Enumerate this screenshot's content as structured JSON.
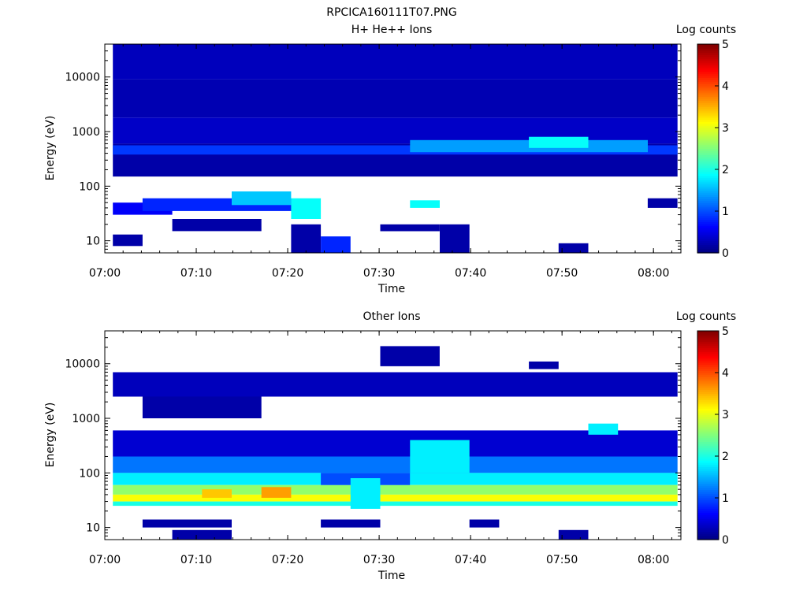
{
  "figure_title": "RPCICA160111T07.PNG",
  "colors": {
    "colormap": [
      "#00007f",
      "#0000ff",
      "#007fff",
      "#00ffff",
      "#7fff7f",
      "#ffff00",
      "#ff7f00",
      "#ff0000",
      "#7f0000"
    ]
  },
  "chart_data": [
    {
      "type": "heatmap",
      "title": "H+ He++ Ions",
      "xlabel": "Time",
      "ylabel": "Energy (eV)",
      "colorbar_label": "Log counts",
      "colorbar_ticks": [
        "0",
        "1",
        "2",
        "3",
        "4",
        "5"
      ],
      "x_tick_labels": [
        "07:00",
        "07:10",
        "07:20",
        "07:30",
        "07:40",
        "07:50",
        "08:00"
      ],
      "y_tick_labels": [
        "10",
        "100",
        "1000",
        "10000"
      ],
      "y_scale": "log",
      "ylim": [
        6,
        40000
      ],
      "xlim": [
        "07:00",
        "08:03"
      ],
      "clim": [
        0,
        5
      ],
      "time_bins": [
        "07:02:30",
        "07:05:45",
        "07:09:00",
        "07:12:15",
        "07:15:30",
        "07:18:45",
        "07:22:00",
        "07:25:15",
        "07:28:30",
        "07:31:45",
        "07:35:00",
        "07:38:15",
        "07:41:30",
        "07:44:45",
        "07:48:00",
        "07:51:15",
        "07:54:30",
        "07:57:45",
        "08:01:00"
      ],
      "cells": [
        {
          "t": [
            0,
            18
          ],
          "e": [
            9000,
            40000
          ],
          "v": 0.3
        },
        {
          "t": [
            0,
            18
          ],
          "e": [
            1800,
            9000
          ],
          "v": 0.25
        },
        {
          "t": [
            0,
            18
          ],
          "e": [
            600,
            1800
          ],
          "v": 0.35
        },
        {
          "t": [
            0,
            18
          ],
          "e": [
            150,
            600
          ],
          "v": 0.2
        },
        {
          "t": [
            0,
            18
          ],
          "e": [
            380,
            560
          ],
          "v": 0.9
        },
        {
          "t": [
            10,
            17
          ],
          "e": [
            420,
            700
          ],
          "v": 1.4
        },
        {
          "t": [
            14,
            15
          ],
          "e": [
            500,
            800
          ],
          "v": 1.9
        },
        {
          "t": [
            0,
            1
          ],
          "e": [
            30,
            50
          ],
          "v": 0.6
        },
        {
          "t": [
            1,
            5
          ],
          "e": [
            35,
            60
          ],
          "v": 0.8
        },
        {
          "t": [
            4,
            5
          ],
          "e": [
            45,
            80
          ],
          "v": 1.6
        },
        {
          "t": [
            6,
            6
          ],
          "e": [
            25,
            60
          ],
          "v": 1.9
        },
        {
          "t": [
            10,
            10
          ],
          "e": [
            40,
            55
          ],
          "v": 1.9
        },
        {
          "t": [
            2,
            4
          ],
          "e": [
            15,
            25
          ],
          "v": 0.2
        },
        {
          "t": [
            6,
            6
          ],
          "e": [
            6,
            20
          ],
          "v": 0.2
        },
        {
          "t": [
            7,
            7
          ],
          "e": [
            6,
            12
          ],
          "v": 0.8
        },
        {
          "t": [
            11,
            11
          ],
          "e": [
            6,
            20
          ],
          "v": 0.2
        },
        {
          "t": [
            0,
            0
          ],
          "e": [
            8,
            13
          ],
          "v": 0.2
        },
        {
          "t": [
            9,
            10
          ],
          "e": [
            15,
            20
          ],
          "v": 0.2
        },
        {
          "t": [
            15,
            15
          ],
          "e": [
            6,
            9
          ],
          "v": 0.2
        },
        {
          "t": [
            18,
            18
          ],
          "e": [
            40,
            60
          ],
          "v": 0.2
        }
      ]
    },
    {
      "type": "heatmap",
      "title": "Other Ions",
      "xlabel": "Time",
      "ylabel": "Energy (eV)",
      "colorbar_label": "Log counts",
      "colorbar_ticks": [
        "0",
        "1",
        "2",
        "3",
        "4",
        "5"
      ],
      "x_tick_labels": [
        "07:00",
        "07:10",
        "07:20",
        "07:30",
        "07:40",
        "07:50",
        "08:00"
      ],
      "y_tick_labels": [
        "10",
        "100",
        "1000",
        "10000"
      ],
      "y_scale": "log",
      "ylim": [
        6,
        40000
      ],
      "xlim": [
        "07:00",
        "08:03"
      ],
      "clim": [
        0,
        5
      ],
      "time_bins": [
        "07:02:30",
        "07:05:45",
        "07:09:00",
        "07:12:15",
        "07:15:30",
        "07:18:45",
        "07:22:00",
        "07:25:15",
        "07:28:30",
        "07:31:45",
        "07:35:00",
        "07:38:15",
        "07:41:30",
        "07:44:45",
        "07:48:00",
        "07:51:15",
        "07:54:30",
        "07:57:45",
        "08:01:00"
      ],
      "cells": [
        {
          "t": [
            0,
            18
          ],
          "e": [
            200,
            600
          ],
          "v": 0.4
        },
        {
          "t": [
            0,
            18
          ],
          "e": [
            100,
            200
          ],
          "v": 1.2
        },
        {
          "t": [
            0,
            18
          ],
          "e": [
            60,
            100
          ],
          "v": 1.8
        },
        {
          "t": [
            0,
            18
          ],
          "e": [
            40,
            60
          ],
          "v": 2.6
        },
        {
          "t": [
            0,
            18
          ],
          "e": [
            30,
            40
          ],
          "v": 3.1
        },
        {
          "t": [
            0,
            18
          ],
          "e": [
            25,
            30
          ],
          "v": 2.0
        },
        {
          "t": [
            5,
            5
          ],
          "e": [
            35,
            55
          ],
          "v": 3.6
        },
        {
          "t": [
            3,
            3
          ],
          "e": [
            35,
            50
          ],
          "v": 3.4
        },
        {
          "t": [
            7,
            9
          ],
          "e": [
            60,
            100
          ],
          "v": 1.0
        },
        {
          "t": [
            8,
            8
          ],
          "e": [
            22,
            80
          ],
          "v": 1.8
        },
        {
          "t": [
            10,
            11
          ],
          "e": [
            100,
            400
          ],
          "v": 1.8
        },
        {
          "t": [
            16,
            16
          ],
          "e": [
            500,
            800
          ],
          "v": 1.8
        },
        {
          "t": [
            0,
            18
          ],
          "e": [
            2500,
            7000
          ],
          "v": 0.3
        },
        {
          "t": [
            1,
            4
          ],
          "e": [
            1000,
            2500
          ],
          "v": 0.2
        },
        {
          "t": [
            9,
            10
          ],
          "e": [
            9000,
            21000
          ],
          "v": 0.2
        },
        {
          "t": [
            14,
            14
          ],
          "e": [
            8000,
            11000
          ],
          "v": 0.2
        },
        {
          "t": [
            1,
            3
          ],
          "e": [
            10,
            14
          ],
          "v": 0.2
        },
        {
          "t": [
            2,
            3
          ],
          "e": [
            6,
            9
          ],
          "v": 0.2
        },
        {
          "t": [
            7,
            8
          ],
          "e": [
            10,
            14
          ],
          "v": 0.2
        },
        {
          "t": [
            15,
            15
          ],
          "e": [
            6,
            9
          ],
          "v": 0.2
        },
        {
          "t": [
            12,
            12
          ],
          "e": [
            10,
            14
          ],
          "v": 0.2
        }
      ]
    }
  ]
}
